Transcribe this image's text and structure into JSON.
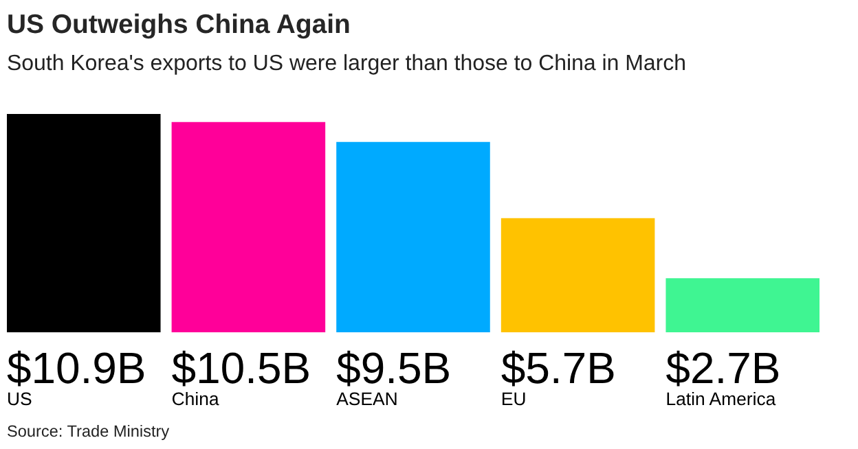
{
  "chart_data": {
    "type": "bar",
    "title": "US Outweighs China Again",
    "subtitle": "South Korea's exports to US were larger than those to China in March",
    "categories": [
      "US",
      "China",
      "ASEAN",
      "EU",
      "Latin America"
    ],
    "values": [
      10.9,
      10.5,
      9.5,
      5.7,
      2.7
    ],
    "value_labels": [
      "$10.9B",
      "$10.5B",
      "$9.5B",
      "$5.7B",
      "$2.7B"
    ],
    "colors": [
      "#000000",
      "#ff0099",
      "#00aaff",
      "#ffc200",
      "#3ff592"
    ],
    "annotations": [
      "Source: Trade Ministry"
    ]
  }
}
